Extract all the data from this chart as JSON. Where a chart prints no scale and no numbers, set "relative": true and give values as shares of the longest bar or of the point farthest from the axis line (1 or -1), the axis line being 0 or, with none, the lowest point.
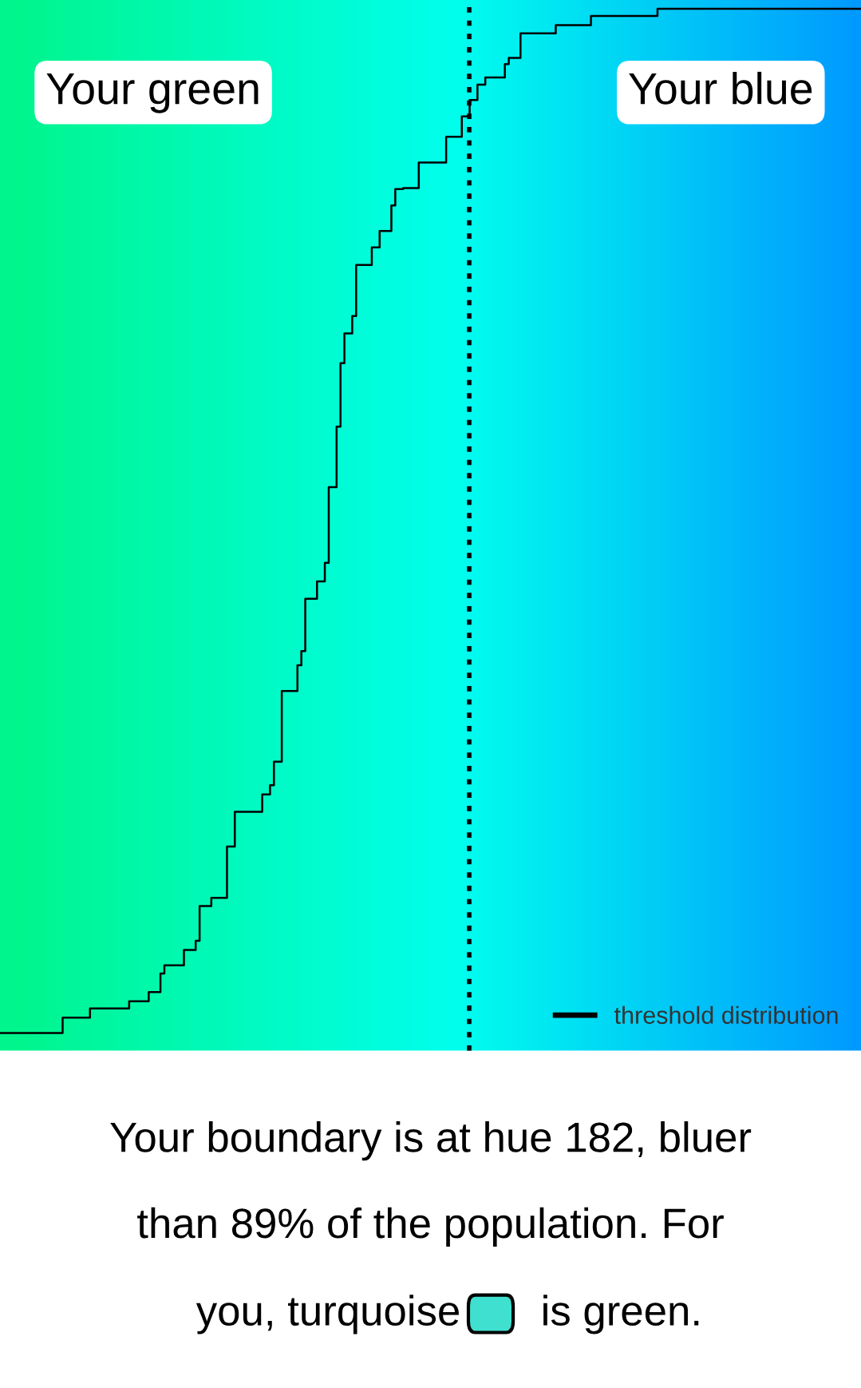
{
  "chart_data": {
    "type": "step",
    "relative": true,
    "legend": "bottom right",
    "categories": [
      null,
      null,
      null,
      null,
      null,
      null,
      null,
      null,
      null,
      null,
      null,
      null,
      null,
      null,
      null,
      null,
      null,
      null,
      null,
      null,
      null,
      null,
      null,
      null,
      null,
      null,
      null,
      null,
      null,
      null,
      null,
      null,
      null,
      null,
      null,
      null,
      null,
      null,
      null,
      null,
      null,
      null,
      null,
      null,
      null,
      null,
      null,
      null,
      null,
      null,
      null,
      null,
      null,
      null,
      null,
      null,
      null,
      null,
      null,
      null,
      null,
      null,
      null,
      null,
      null,
      null,
      null,
      null,
      null,
      null,
      null,
      null,
      null,
      null,
      null,
      null,
      null,
      null,
      null,
      null,
      null,
      null,
      null,
      null,
      null,
      null,
      null,
      null,
      null,
      null,
      null,
      null,
      null,
      null,
      null,
      null,
      null,
      null,
      null,
      null,
      null,
      null,
      null,
      null,
      null,
      null,
      null,
      null,
      null,
      null,
      null,
      null,
      null,
      null,
      null,
      null,
      null,
      null,
      null,
      null,
      null,
      null,
      null,
      null,
      null,
      null,
      null,
      null,
      null,
      null,
      null,
      null,
      null,
      null,
      null,
      null,
      null,
      null,
      null,
      null,
      null,
      null,
      null,
      null,
      null,
      null,
      null,
      null,
      null,
      null,
      null,
      null,
      null,
      null,
      null,
      null,
      null,
      null,
      null,
      null,
      null,
      null,
      null,
      null,
      null,
      null,
      null,
      null,
      null,
      null,
      null,
      null,
      null,
      null,
      null,
      null,
      null,
      null,
      null,
      null,
      null,
      null,
      null,
      null,
      null,
      null,
      null,
      null,
      null,
      null,
      null,
      null,
      null,
      null,
      null,
      null,
      null,
      null,
      null,
      null,
      null,
      null,
      null,
      null,
      null,
      null,
      null,
      null,
      null,
      null,
      null,
      null,
      null,
      null,
      null,
      null,
      null,
      null,
      null,
      null,
      null
    ],
    "series": [
      {
        "name": "threshold distribution",
        "color": "#000000",
        "values": [
          0,
          0,
          0,
          0,
          0,
          0,
          0,
          0,
          0,
          0,
          0,
          0,
          0,
          0,
          0,
          0,
          0.015,
          0.015,
          0.015,
          0.015,
          0.015,
          0.015,
          0.015,
          0.024,
          0.024,
          0.024,
          0.024,
          0.024,
          0.024,
          0.024,
          0.024,
          0.024,
          0.024,
          0.031,
          0.031,
          0.031,
          0.031,
          0.031,
          0.04,
          0.04,
          0.04,
          0.058,
          0.066,
          0.066,
          0.066,
          0.066,
          0.066,
          0.081,
          0.081,
          0.081,
          0.09,
          0.124,
          0.124,
          0.124,
          0.132,
          0.132,
          0.132,
          0.132,
          0.182,
          0.182,
          0.216,
          0.216,
          0.216,
          0.216,
          0.216,
          0.216,
          0.216,
          0.233,
          0.233,
          0.242,
          0.265,
          0.265,
          0.334,
          0.334,
          0.334,
          0.334,
          0.359,
          0.373,
          0.424,
          0.424,
          0.424,
          0.441,
          0.441,
          0.459,
          0.533,
          0.533,
          0.592,
          0.654,
          0.683,
          0.683,
          0.7,
          0.75,
          0.75,
          0.75,
          0.75,
          0.767,
          0.767,
          0.783,
          0.783,
          0.783,
          0.808,
          0.824,
          0.824,
          0.825,
          0.825,
          0.825,
          0.825,
          0.85,
          0.85,
          0.85,
          0.85,
          0.85,
          0.85,
          0.85,
          0.875,
          0.875,
          0.875,
          0.875,
          0.895,
          0.895,
          0.911,
          0.911,
          0.926,
          0.926,
          0.933,
          0.933,
          0.933,
          0.933,
          0.933,
          0.946,
          0.952,
          0.952,
          0.952,
          0.976,
          0.976,
          0.976,
          0.976,
          0.976,
          0.976,
          0.976,
          0.976,
          0.976,
          0.984,
          0.984,
          0.984,
          0.984,
          0.984,
          0.984,
          0.984,
          0.984,
          0.984,
          0.993,
          0.993,
          0.993,
          0.993,
          0.993,
          0.993,
          0.993,
          0.993,
          0.993,
          0.993,
          0.993,
          0.993,
          0.993,
          0.993,
          0.993,
          0.993,
          0.993,
          1,
          1,
          1,
          1,
          1,
          1,
          1,
          1,
          1,
          1,
          1,
          1,
          1,
          1,
          1,
          1,
          1,
          1,
          1,
          1,
          1,
          1,
          1,
          1,
          1,
          1,
          1,
          1,
          1,
          1,
          1,
          1,
          1,
          1,
          1,
          1,
          1,
          1,
          1,
          1,
          1,
          1,
          1,
          1,
          1,
          1,
          1,
          1,
          1,
          1,
          1,
          1,
          1
        ]
      }
    ],
    "annotations": [
      "Your green",
      "Your blue",
      "Your boundary is at hue 182, bluer",
      "than 89% of the population. For",
      "you, turquoise",
      "is green."
    ]
  }
}
